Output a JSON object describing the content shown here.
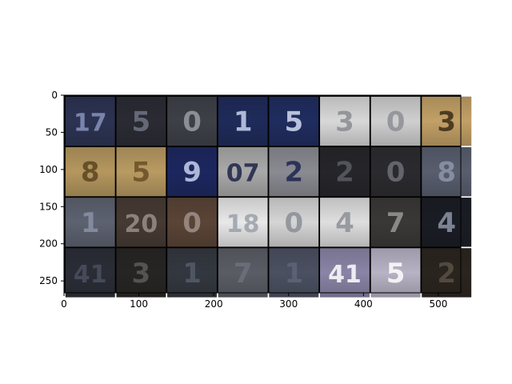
{
  "chart_data": {
    "type": "image",
    "title": "",
    "xlabel": "",
    "ylabel": "",
    "xlim": [
      0,
      530
    ],
    "ylim": [
      266,
      0
    ],
    "x_ticks": [
      0,
      100,
      200,
      300,
      400,
      500
    ],
    "y_ticks": [
      0,
      50,
      100,
      150,
      200,
      250
    ],
    "x_tick_labels": [
      "0",
      "100",
      "200",
      "300",
      "400",
      "500"
    ],
    "y_tick_labels": [
      "0",
      "50",
      "100",
      "150",
      "200",
      "250"
    ],
    "grid": {
      "rows": 4,
      "cols": 8,
      "tile_size": 66,
      "padding": 2
    },
    "tiles": [
      {
        "bg": "#2c3352",
        "fg": "#8793bd",
        "text": "17"
      },
      {
        "bg": "#2a2b33",
        "fg": "#707484",
        "text": "5"
      },
      {
        "bg": "#3e4048",
        "fg": "#9a9ba6",
        "text": "0"
      },
      {
        "bg": "#1e2b5a",
        "fg": "#c9d1ee",
        "text": "1"
      },
      {
        "bg": "#1f2c5f",
        "fg": "#d4dcf2",
        "text": "5"
      },
      {
        "bg": "#d8d8d8",
        "fg": "#8a8c90",
        "text": "3"
      },
      {
        "bg": "#cfcfcf",
        "fg": "#8d8f94",
        "text": "0"
      },
      {
        "bg": "#c2a066",
        "fg": "#3a2c16",
        "text": "3"
      },
      {
        "bg": "#b5975e",
        "fg": "#5a4522",
        "text": "8"
      },
      {
        "bg": "#b89a62",
        "fg": "#6a4f24",
        "text": "5"
      },
      {
        "bg": "#1c2760",
        "fg": "#c8d0ee",
        "text": "9"
      },
      {
        "bg": "#a9a9a9",
        "fg": "#1e2448",
        "text": "07"
      },
      {
        "bg": "#8a8a92",
        "fg": "#1e2550",
        "text": "2"
      },
      {
        "bg": "#25252a",
        "fg": "#5c5d64",
        "text": "2"
      },
      {
        "bg": "#2b2b2f",
        "fg": "#6e6f77",
        "text": "0"
      },
      {
        "bg": "#585e6e",
        "fg": "#8e97ab",
        "text": "8"
      },
      {
        "bg": "#5d6270",
        "fg": "#8b92a6",
        "text": "1"
      },
      {
        "bg": "#463a33",
        "fg": "#9a8f88",
        "text": "20"
      },
      {
        "bg": "#5a4436",
        "fg": "#a0908a",
        "text": "0"
      },
      {
        "bg": "#e8e8e8",
        "fg": "#9aa0ab",
        "text": "18"
      },
      {
        "bg": "#d5d5d5",
        "fg": "#8a8e97",
        "text": "0"
      },
      {
        "bg": "#dedede",
        "fg": "#8d9098",
        "text": "4"
      },
      {
        "bg": "#3a3836",
        "fg": "#9a9794",
        "text": "7"
      },
      {
        "bg": "#1a1c24",
        "fg": "#8e95a8",
        "text": "4"
      },
      {
        "bg": "#2a2d36",
        "fg": "#4a5060",
        "text": "41"
      },
      {
        "bg": "#262523",
        "fg": "#5e5c58",
        "text": "3"
      },
      {
        "bg": "#33373f",
        "fg": "#555c6a",
        "text": "1"
      },
      {
        "bg": "#5a5d65",
        "fg": "#6d717b",
        "text": "7"
      },
      {
        "bg": "#4b5062",
        "fg": "#5f6578",
        "text": "1"
      },
      {
        "bg": "#8a84a6",
        "fg": "#ffffff",
        "text": "41"
      },
      {
        "bg": "#b7b2c4",
        "fg": "#ffffff",
        "text": "5"
      },
      {
        "bg": "#2a241e",
        "fg": "#5a5045",
        "text": "2"
      }
    ]
  }
}
